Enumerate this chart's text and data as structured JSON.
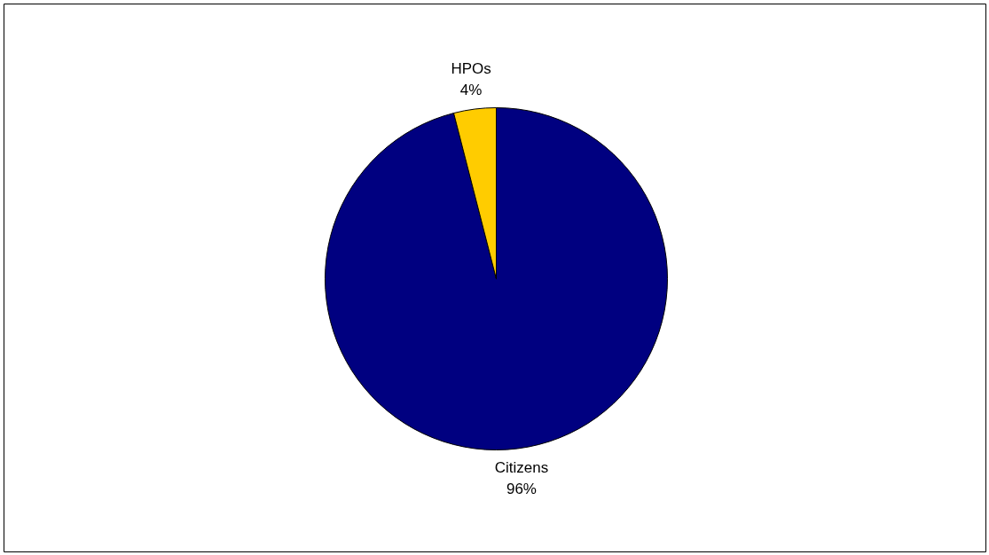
{
  "chart_data": {
    "type": "pie",
    "categories": [
      "Citizens",
      "HPOs"
    ],
    "values": [
      96,
      4
    ],
    "colors": [
      "#000080",
      "#ffcc00"
    ],
    "value_labels": [
      "96%",
      "4%"
    ]
  }
}
